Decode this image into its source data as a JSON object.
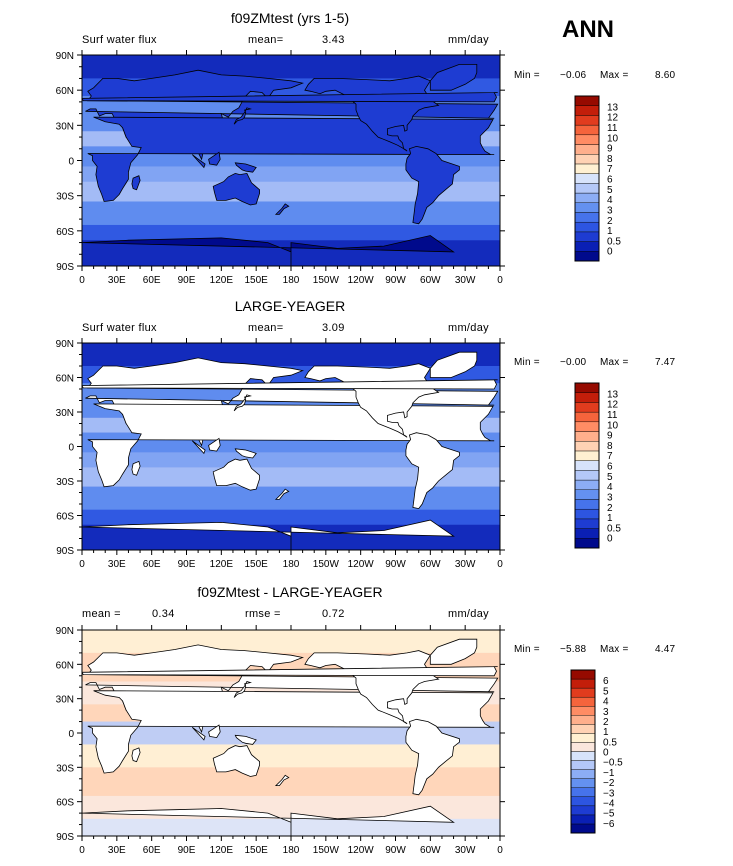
{
  "season": "ANN",
  "units": "mm/day",
  "colors": {
    "abs_scale": [
      "#000a8c",
      "#0a1fb4",
      "#1e3cd2",
      "#2d55e1",
      "#4673eb",
      "#6491f0",
      "#8cadf5",
      "#b4c8f8",
      "#d7e3fb",
      "#fff0d2",
      "#ffd2b4",
      "#ffaf8c",
      "#ff8c64",
      "#f5643c",
      "#e13c1e",
      "#c31e0a",
      "#960a00"
    ],
    "diff_scale": [
      "#000a8c",
      "#0a1fb4",
      "#1e3cd2",
      "#2d55e1",
      "#4673eb",
      "#6491f0",
      "#8cadf5",
      "#b4c8f8",
      "#d7e3fb",
      "#fae6dc",
      "#fff0d2",
      "#ffd2b4",
      "#ffaf8c",
      "#ff8c64",
      "#f5643c",
      "#e13c1e",
      "#c31e0a",
      "#960a00"
    ]
  },
  "chart_data": [
    {
      "type": "heatmap",
      "title": "f09ZMtest (yrs 1-5)",
      "variable": "Surf water flux",
      "mean_label": "mean=",
      "mean": "3.43",
      "min_label": "Min =",
      "min": "−0.06",
      "max_label": "Max =",
      "max": "8.60",
      "levels": [
        "0",
        "0.5",
        "1",
        "2",
        "3",
        "4",
        "5",
        "6",
        "7",
        "8",
        "9",
        "10",
        "11",
        "12",
        "13"
      ],
      "x_ticks": [
        "0",
        "30E",
        "60E",
        "90E",
        "120E",
        "150E",
        "180",
        "150W",
        "120W",
        "90W",
        "60W",
        "30W",
        "0"
      ],
      "y_ticks": [
        "90N",
        "60N",
        "30N",
        "0",
        "30S",
        "60S",
        "90S"
      ],
      "land_masked": false
    },
    {
      "type": "heatmap",
      "title": "LARGE-YEAGER",
      "variable": "Surf water flux",
      "mean_label": "mean=",
      "mean": "3.09",
      "min_label": "Min =",
      "min": "−0.00",
      "max_label": "Max =",
      "max": "7.47",
      "levels": [
        "0",
        "0.5",
        "1",
        "2",
        "3",
        "4",
        "5",
        "6",
        "7",
        "8",
        "9",
        "10",
        "11",
        "12",
        "13"
      ],
      "x_ticks": [
        "0",
        "30E",
        "60E",
        "90E",
        "120E",
        "150E",
        "180",
        "150W",
        "120W",
        "90W",
        "60W",
        "30W",
        "0"
      ],
      "y_ticks": [
        "90N",
        "60N",
        "30N",
        "0",
        "30S",
        "60S",
        "90S"
      ],
      "land_masked": true
    },
    {
      "type": "heatmap",
      "title": "f09ZMtest - LARGE-YEAGER",
      "mean_label": "mean =",
      "mean": "0.34",
      "rmse_label": "rmse =",
      "rmse": "0.72",
      "min_label": "Min =",
      "min": "−5.88",
      "max_label": "Max =",
      "max": "4.47",
      "levels": [
        "−6",
        "−5",
        "−4",
        "−3",
        "−2",
        "−1",
        "−0.5",
        "0",
        "0.5",
        "1",
        "2",
        "3",
        "4",
        "5",
        "6"
      ],
      "x_ticks": [
        "0",
        "30E",
        "60E",
        "90E",
        "120E",
        "150E",
        "180",
        "150W",
        "120W",
        "90W",
        "60W",
        "30W",
        "0"
      ],
      "y_ticks": [
        "90N",
        "60N",
        "30N",
        "0",
        "30S",
        "60S",
        "90S"
      ],
      "land_masked": true
    }
  ]
}
